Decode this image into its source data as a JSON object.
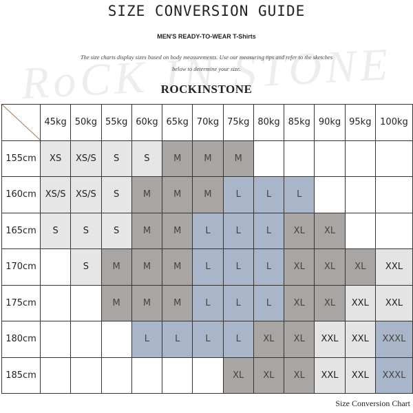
{
  "header": {
    "title": "SIZE CONVERSION GUIDE",
    "subtitle": "MEN'S READY-TO-WEAR T-Shirts",
    "description": [
      "The size charts display sizes based on body measurements.  Use our measuring tips and refer to the sketches",
      "below to determine your size."
    ],
    "watermark": "RoCK IN STONE",
    "brand": "ROCKINSTONE"
  },
  "table": {
    "columns": [
      "45kg",
      "50kg",
      "55kg",
      "60kg",
      "65kg",
      "70kg",
      "75kg",
      "80kg",
      "85kg",
      "90kg",
      "95kg",
      "100kg"
    ],
    "row_labels": [
      "155cm",
      "160cm",
      "165cm",
      "170cm",
      "175cm",
      "180cm",
      "185cm"
    ],
    "rows": [
      [
        "XS",
        "XS/S",
        "S",
        "S",
        "M",
        "M",
        "M",
        null,
        null,
        null,
        null,
        null
      ],
      [
        "XS/S",
        "XS/S",
        "S",
        "M",
        "M",
        "M",
        "L",
        "L",
        "L",
        null,
        null,
        null
      ],
      [
        "S",
        "S",
        "S",
        "M",
        "M",
        "L",
        "L",
        "L",
        "XL",
        "XL",
        null,
        null
      ],
      [
        null,
        "S",
        "M",
        "M",
        "M",
        "L",
        "L",
        "L",
        "XL",
        "XL",
        "XL",
        "XXL"
      ],
      [
        null,
        null,
        "M",
        "M",
        "M",
        "L",
        "L",
        "L",
        "XL",
        "XL",
        "XXL",
        "XXL"
      ],
      [
        null,
        null,
        null,
        "L",
        "L",
        "L",
        "L",
        "XL",
        "XL",
        "XXL",
        "XXL",
        "XXXL"
      ],
      [
        null,
        null,
        null,
        null,
        null,
        null,
        "XL",
        "XL",
        "XL",
        "XXL",
        "XXL",
        "XXXL"
      ]
    ],
    "size_colors": {
      "XS": "#e6e6e6",
      "XS/S": "#e6e6e6",
      "S": "#e6e6e6",
      "M": "#a9a5a3",
      "L": "#a9b5c9",
      "XL": "#a9a5a3",
      "XXL": "#e4e4e4",
      "XXXL": "#a9b5c9"
    }
  },
  "footer": {
    "caption": "Size Conversion Chart"
  }
}
